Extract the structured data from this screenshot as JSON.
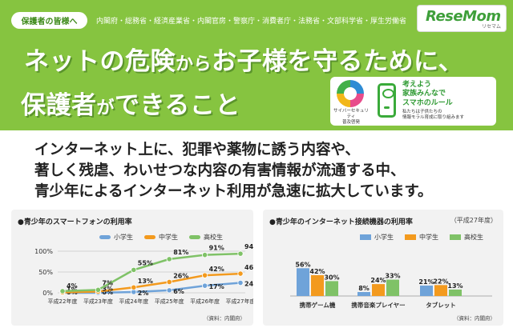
{
  "header": {
    "audience": "保護者の皆様へ",
    "ministries": "内閣府・総務省・経済産業省・内閣官房・警察庁・消費者庁・法務省・文部科学省・厚生労働省",
    "brand": "ReseMom",
    "brand_sub": "リセマム",
    "title_line1_a": "ネットの危険",
    "title_line1_b": "から",
    "title_line1_c": "お子様を守るために、",
    "title_line2_a": "保護者",
    "title_line2_b": "が",
    "title_line2_c": "できること"
  },
  "promo": {
    "logo_caption_1": "サイバーセキュリティ",
    "logo_caption_2": "普及啓発",
    "heading_1": "考えよう",
    "heading_2": "家族みんなで",
    "heading_3": "スマホのルール",
    "sub_1": "私たちは子供たちの",
    "sub_2": "情報モラル育成に取り組みます"
  },
  "lead": {
    "line1": "インターネット上に、犯罪や薬物に誘う内容や、",
    "line2": "著しく残虐、わいせつな内容の有害情報が流通する中、",
    "line3": "青少年によるインターネット利用が急速に拡大しています。"
  },
  "colors": {
    "green": "#86c440",
    "elementary": "#6fa3d9",
    "junior_high": "#f39a1e",
    "high_school": "#7fc267"
  },
  "chart_data": [
    {
      "type": "line",
      "title": "●青少年のスマートフォンの利用率",
      "source": "（資料：内閣府）",
      "categories": [
        "平成22年度",
        "平成23年度",
        "平成24年度",
        "平成25年度",
        "平成26年度",
        "平成27年度"
      ],
      "series": [
        {
          "name": "小学生",
          "values": [
            0,
            0,
            2,
            6,
            17,
            24
          ],
          "labels": [
            "0%",
            "0%",
            "2%",
            "6%",
            "17%",
            "24%"
          ]
        },
        {
          "name": "中学生",
          "values": [
            1,
            3,
            13,
            26,
            42,
            46
          ],
          "labels": [
            "1%",
            "3%",
            "13%",
            "26%",
            "42%",
            "46%"
          ]
        },
        {
          "name": "高校生",
          "values": [
            4,
            7,
            55,
            81,
            91,
            94
          ],
          "labels": [
            "4%",
            "7%",
            "55%",
            "81%",
            "91%",
            "94%"
          ]
        }
      ],
      "yticks": [
        "100%",
        "50%",
        "0%"
      ],
      "ylim": [
        0,
        100
      ],
      "grid": true,
      "legend": "top"
    },
    {
      "type": "bar",
      "title": "●青少年のインターネット接続機器の利用率",
      "note": "（平成27年度）",
      "source": "（資料：内閣府）",
      "categories": [
        "携帯ゲーム機",
        "携帯音楽プレイヤー",
        "タブレット"
      ],
      "series": [
        {
          "name": "小学生",
          "values": [
            56,
            8,
            21
          ],
          "labels": [
            "56%",
            "8%",
            "21%"
          ]
        },
        {
          "name": "中学生",
          "values": [
            42,
            24,
            22
          ],
          "labels": [
            "42%",
            "24%",
            "22%"
          ]
        },
        {
          "name": "高校生",
          "values": [
            30,
            33,
            13
          ],
          "labels": [
            "30%",
            "33%",
            "13%"
          ]
        }
      ],
      "ylim": [
        0,
        100
      ],
      "grid": false,
      "legend": "top"
    }
  ]
}
